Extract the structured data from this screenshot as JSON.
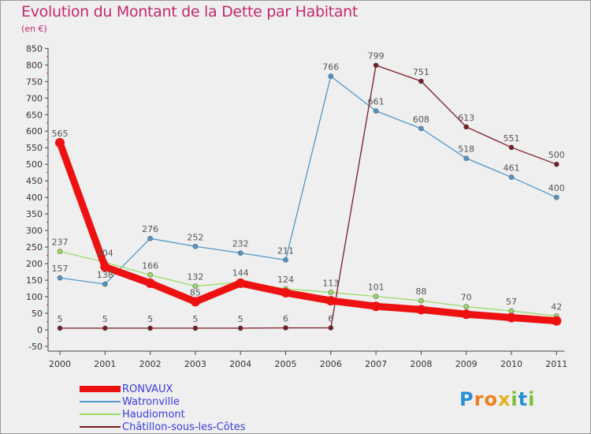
{
  "title": "Evolution du Montant de la Dette par Habitant",
  "unit_label": "(en €)",
  "brand": {
    "text": "Proxiti",
    "letters": [
      {
        "ch": "P",
        "color": "#2a8fd6"
      },
      {
        "ch": "r",
        "color": "#f07d1a"
      },
      {
        "ch": "o",
        "color": "#f07d1a"
      },
      {
        "ch": "x",
        "color": "#e8b020"
      },
      {
        "ch": "i",
        "color": "#7bbf3a"
      },
      {
        "ch": "t",
        "color": "#2a8fd6"
      },
      {
        "ch": "i",
        "color": "#7bbf3a"
      }
    ]
  },
  "chart_data": {
    "type": "line",
    "categories": [
      "2000",
      "2001",
      "2002",
      "2003",
      "2004",
      "2005",
      "2006",
      "2007",
      "2008",
      "2009",
      "2010",
      "2011"
    ],
    "ylim": [
      -50,
      850
    ],
    "yticks": [
      -50,
      0,
      50,
      100,
      150,
      200,
      250,
      300,
      350,
      400,
      450,
      500,
      550,
      600,
      650,
      700,
      750,
      800,
      850
    ],
    "grid": false,
    "legend_position": "bottom-left",
    "series": [
      {
        "name": "RONVAUX",
        "color": "#ee1111",
        "values": [
          565,
          190,
          141,
          85,
          141,
          112,
          88,
          71,
          61,
          47,
          37,
          27
        ],
        "labels": [
          "565",
          "",
          "",
          "85",
          "",
          "",
          "",
          "",
          "",
          "",
          "",
          ""
        ]
      },
      {
        "name": "Watronville",
        "color": "#4f97cc",
        "values": [
          157,
          138,
          276,
          252,
          232,
          211,
          766,
          661,
          608,
          518,
          461,
          400
        ],
        "labels": [
          "157",
          "138",
          "276",
          "252",
          "232",
          "211",
          "766",
          "661",
          "608",
          "518",
          "461",
          "400"
        ]
      },
      {
        "name": "Haudiomont",
        "color": "#99dd66",
        "values": [
          237,
          204,
          166,
          132,
          144,
          124,
          113,
          101,
          88,
          70,
          57,
          42
        ],
        "labels": [
          "237",
          "204",
          "166",
          "132",
          "144",
          "124",
          "113",
          "101",
          "88",
          "70",
          "57",
          "42"
        ]
      },
      {
        "name": "Châtillon-sous-les-Côtes",
        "color": "#7a1a24",
        "values": [
          5,
          5,
          5,
          5,
          5,
          6,
          6,
          799,
          751,
          613,
          551,
          500
        ],
        "labels": [
          "5",
          "5",
          "5",
          "5",
          "5",
          "6",
          "6",
          "799",
          "751",
          "613",
          "551",
          "500"
        ]
      }
    ]
  }
}
